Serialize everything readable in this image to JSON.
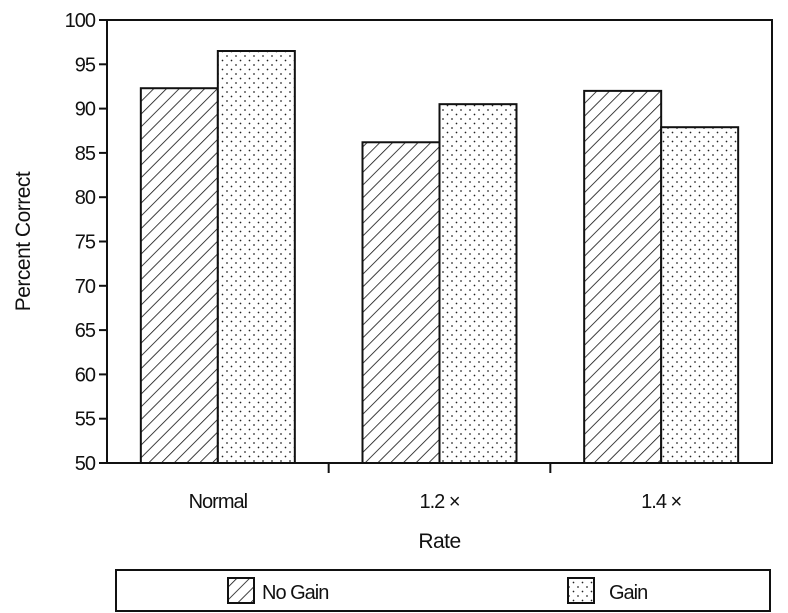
{
  "chart_data": {
    "type": "bar",
    "title": "",
    "xlabel": "Rate",
    "ylabel": "Percent Correct",
    "categories": [
      "Normal",
      "1.2 ×",
      "1.4 ×"
    ],
    "ylim": [
      50,
      100
    ],
    "yticks": [
      50,
      55,
      60,
      65,
      70,
      75,
      80,
      85,
      90,
      95,
      100
    ],
    "grid": false,
    "legend_position": "bottom",
    "series": [
      {
        "name": "No Gain",
        "pattern": "diagonal-hatch",
        "values": [
          92.3,
          86.2,
          92.0
        ]
      },
      {
        "name": "Gain",
        "pattern": "dots",
        "values": [
          96.5,
          90.5,
          87.9
        ]
      }
    ]
  }
}
